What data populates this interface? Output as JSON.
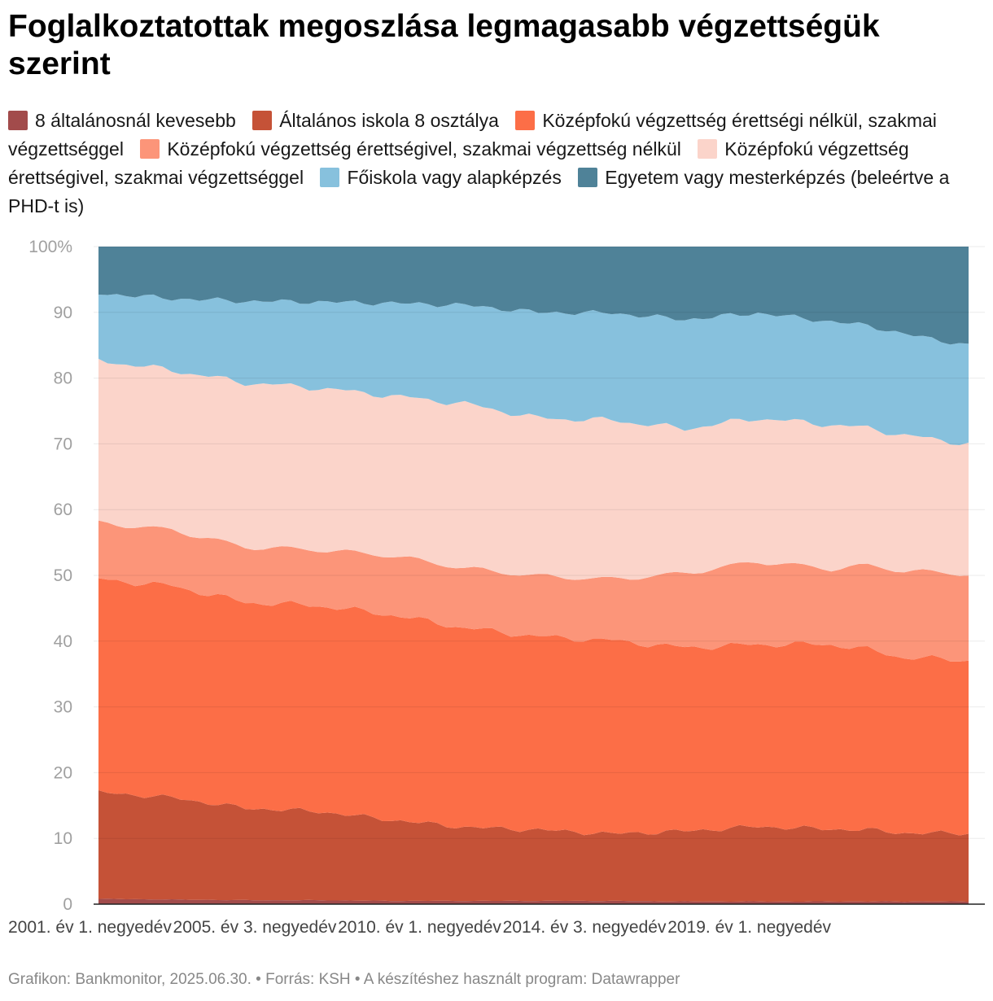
{
  "chart_data": {
    "type": "area",
    "stacked": true,
    "normalized": true,
    "title": "Foglalkoztatottak megoszlása legmagasabb végzettségük szerint",
    "ylim": [
      0,
      100
    ],
    "yticks": [
      {
        "value": 0,
        "label": "0"
      },
      {
        "value": 10,
        "label": "10"
      },
      {
        "value": 20,
        "label": "20"
      },
      {
        "value": 30,
        "label": "30"
      },
      {
        "value": 40,
        "label": "40"
      },
      {
        "value": 50,
        "label": "50"
      },
      {
        "value": 60,
        "label": "60"
      },
      {
        "value": 70,
        "label": "70"
      },
      {
        "value": 80,
        "label": "80"
      },
      {
        "value": 90,
        "label": "90"
      },
      {
        "value": 100,
        "label": "100%"
      }
    ],
    "x_range": [
      "2001 Q1",
      "2024 Q4"
    ],
    "x_ticks": [
      {
        "index": 0,
        "label": "2001. év 1. negyedév"
      },
      {
        "index": 18,
        "label": "2005. év 3. negyedév"
      },
      {
        "index": 36,
        "label": "2010. év 1. negyedév"
      },
      {
        "index": 54,
        "label": "2014. év 3. negyedév"
      },
      {
        "index": 72,
        "label": "2019. év 1. negyedév"
      }
    ],
    "key_x_index": [
      0,
      8,
      16,
      24,
      32,
      40,
      48,
      56,
      64,
      72,
      80,
      84,
      88,
      95
    ],
    "series": [
      {
        "name": "8 általánosnál kevesebb",
        "color": "#a24b4b",
        "values": [
          0.8,
          0.7,
          0.6,
          0.6,
          0.5,
          0.5,
          0.5,
          0.5,
          0.4,
          0.4,
          0.4,
          0.4,
          0.4,
          0.4
        ]
      },
      {
        "name": "Általános iskola 8 osztálya",
        "color": "#c55237",
        "values": [
          16.2,
          15.5,
          14.0,
          13.5,
          12.3,
          11.2,
          10.8,
          10.2,
          10.7,
          11.4,
          11.0,
          10.9,
          10.4,
          10.4
        ]
      },
      {
        "name": "Középfokú végzettség érettségi nélkül, szakmai végzettséggel",
        "color": "#fc6e47",
        "values": [
          32.4,
          32.2,
          31.3,
          31.3,
          31.2,
          30.3,
          29.4,
          29.4,
          27.9,
          27.7,
          28.1,
          27.4,
          26.7,
          26.3
        ]
      },
      {
        "name": "Középfokú végzettség érettségivel, szakmai végzettség nélkül",
        "color": "#fc9579",
        "values": [
          8.6,
          8.5,
          8.4,
          8.5,
          9.0,
          9.1,
          9.2,
          9.3,
          11.3,
          12.6,
          11.5,
          12.8,
          13.2,
          13.1
        ]
      },
      {
        "name": "Középfokú végzettség érettségivel, szakmai végzettséggel",
        "color": "#fbd4ca",
        "values": [
          24.7,
          24.3,
          25.0,
          24.6,
          24.3,
          25.0,
          24.0,
          24.2,
          22.0,
          21.8,
          21.9,
          20.9,
          20.6,
          19.8
        ]
      },
      {
        "name": "Főiskola vagy alapképzés",
        "color": "#87c1dd",
        "values": [
          10.2,
          10.9,
          12.4,
          13.1,
          14.1,
          15.0,
          16.1,
          16.3,
          16.6,
          16.0,
          15.7,
          15.6,
          15.4,
          15.0
        ]
      },
      {
        "name": "Egyetem vagy mesterképzés (beleértve a PHD-t is)",
        "color": "#4f8298",
        "values": [
          7.1,
          7.9,
          8.3,
          8.4,
          8.6,
          8.9,
          10.0,
          10.1,
          11.1,
          10.1,
          11.4,
          12.0,
          13.3,
          15.0
        ]
      }
    ]
  },
  "footer": "Grafikon: Bankmonitor, 2025.06.30. • Forrás: KSH • A készítéshez használt program: Datawrapper"
}
